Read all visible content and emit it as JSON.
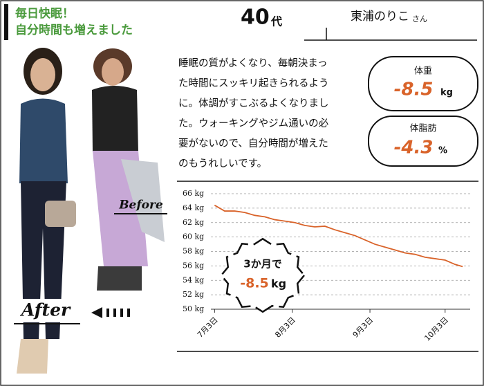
{
  "headline": [
    "毎日快眠！",
    "自分時間も増えました"
  ],
  "age": {
    "number": "40",
    "suffix": "代"
  },
  "name": {
    "text": "東浦のりこ",
    "honorific": "さん"
  },
  "body": [
    "睡眠の質がよくなり、毎朝決まっ",
    "た時間にスッキリ起きられるよう",
    "に。体調がすこぶるよくなりまし",
    "た。ウォーキングやジム通いの必",
    "要がないので、自分時間が増えた",
    "のもうれしいです。"
  ],
  "stats": [
    {
      "label": "体重",
      "value": "-8.5",
      "unit": "kg"
    },
    {
      "label": "体脂肪",
      "value": "-4.3",
      "unit": "%"
    }
  ],
  "photo_labels": {
    "before": "Before",
    "after": "After"
  },
  "chart_data": {
    "type": "line",
    "color": "#d9632a",
    "x": [
      0,
      4,
      8,
      12,
      16,
      20,
      24,
      28,
      32,
      36,
      40,
      44,
      48,
      52,
      56,
      60,
      64,
      68,
      72,
      76,
      80,
      84,
      88,
      92,
      96,
      99
    ],
    "values": [
      64.4,
      63.6,
      63.6,
      63.4,
      63.0,
      62.8,
      62.4,
      62.2,
      62.0,
      61.6,
      61.4,
      61.5,
      61.0,
      60.6,
      60.2,
      59.6,
      59.0,
      58.6,
      58.2,
      57.8,
      57.6,
      57.2,
      57.0,
      56.8,
      56.2,
      55.9
    ],
    "xlim": [
      -7,
      102
    ],
    "xticks": [
      {
        "value": 0,
        "label": "7月3日"
      },
      {
        "value": 31,
        "label": "8月3日"
      },
      {
        "value": 62,
        "label": "9月3日"
      },
      {
        "value": 92,
        "label": "10月3日"
      }
    ],
    "ylim": [
      50,
      66
    ],
    "yticks": [
      {
        "value": 50,
        "label": "50 kg"
      },
      {
        "value": 52,
        "label": "52 kg"
      },
      {
        "value": 54,
        "label": "54 kg"
      },
      {
        "value": 56,
        "label": "56 kg"
      },
      {
        "value": 58,
        "label": "58 kg"
      },
      {
        "value": 60,
        "label": "60 kg"
      },
      {
        "value": 62,
        "label": "62 kg"
      },
      {
        "value": 64,
        "label": "64 kg"
      },
      {
        "value": 66,
        "label": "66 kg"
      }
    ],
    "grid": true,
    "annotation": {
      "lead": "3か月で",
      "value": "-8.5",
      "unit": "kg"
    }
  }
}
